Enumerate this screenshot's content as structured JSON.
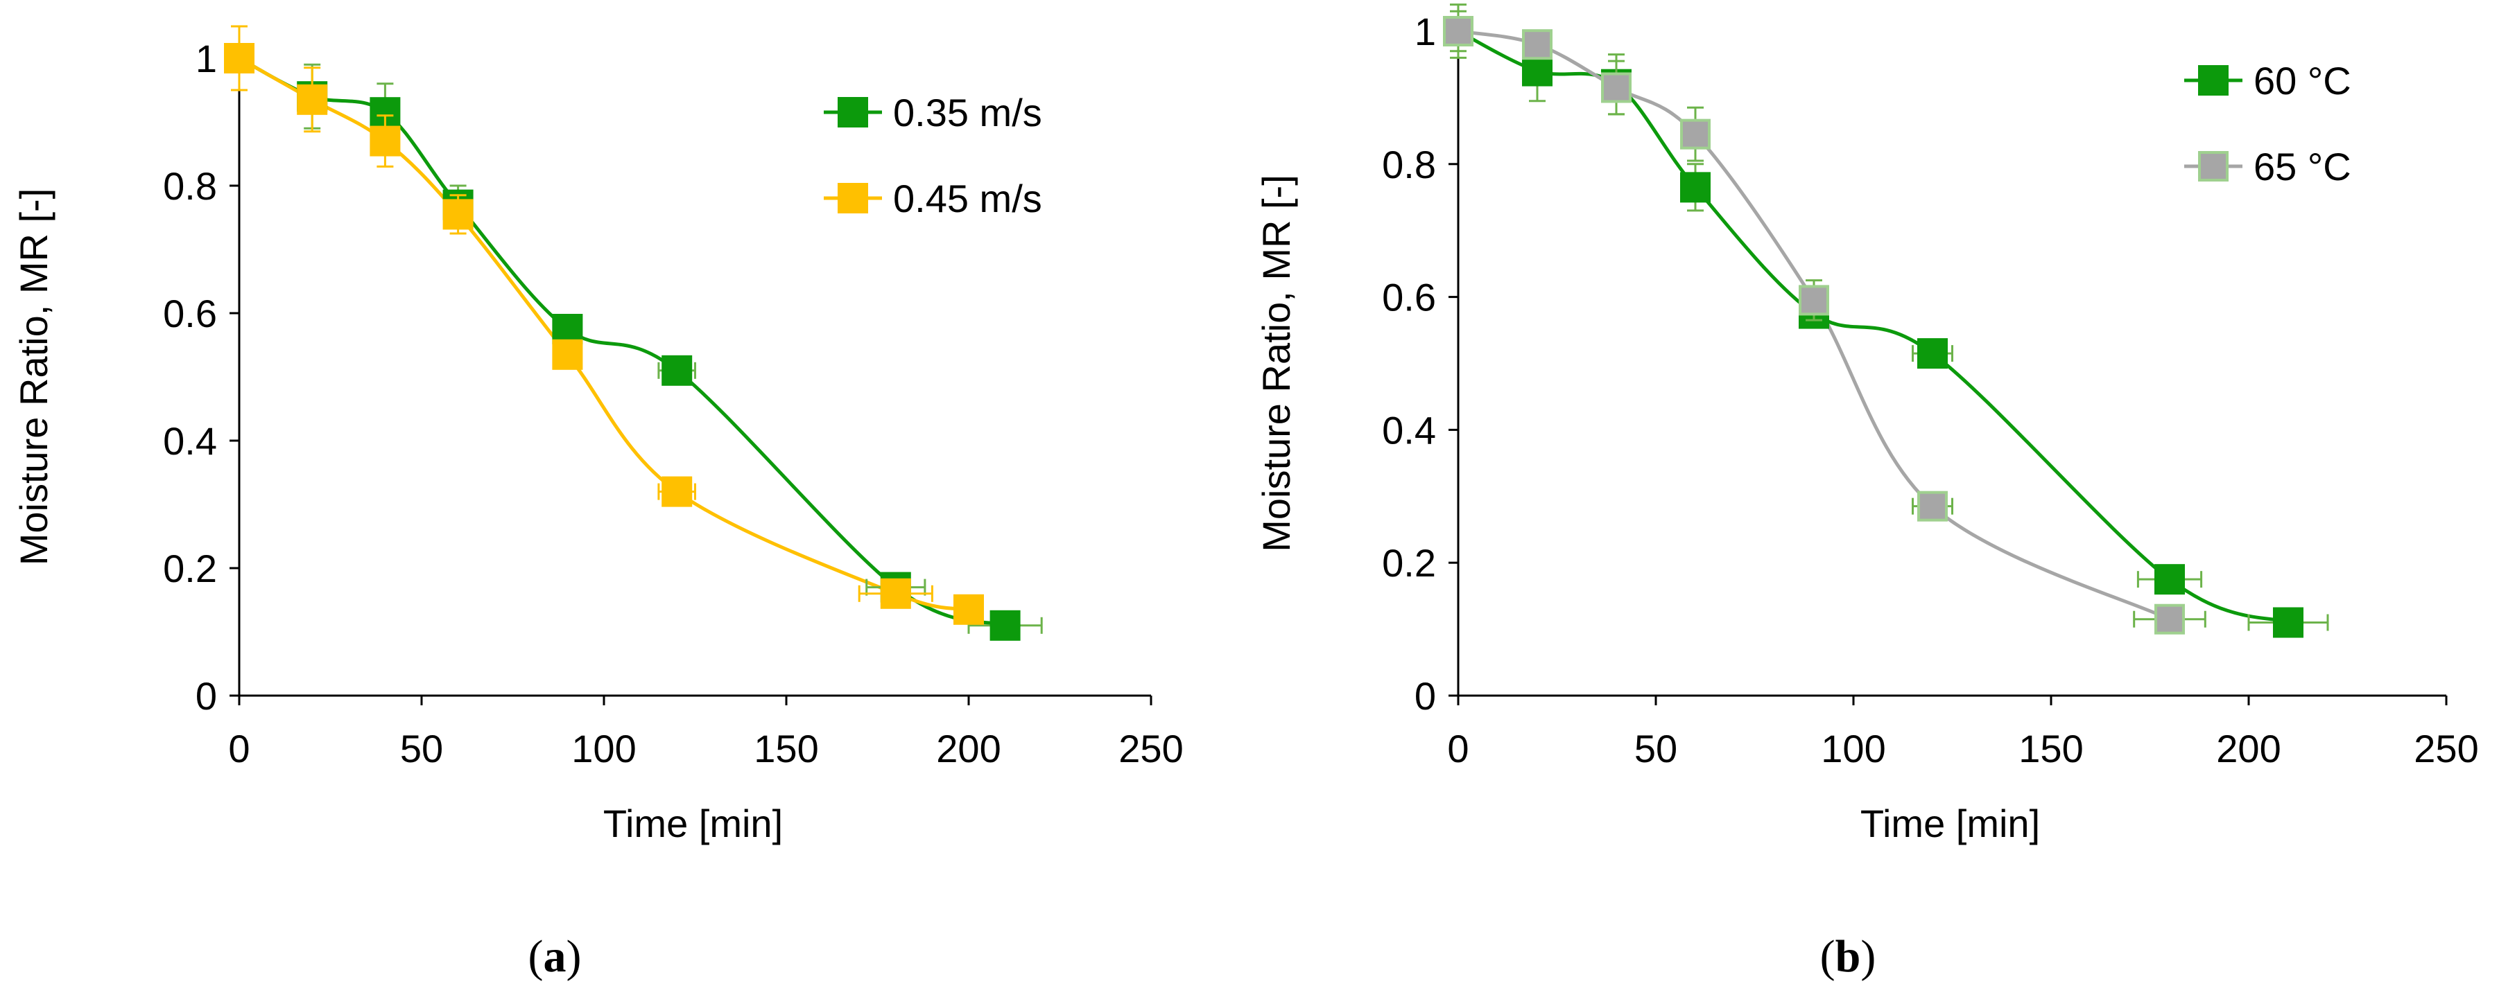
{
  "colors": {
    "green": "#0c9a0c",
    "green_err": "#6cb34a",
    "yellow": "#ffc000",
    "gray": "#a6a6a6",
    "gray_marker_edge": "#9fd08f",
    "axis": "#000000"
  },
  "captions": {
    "a_label": "a",
    "b_label": "b"
  },
  "chart_data": [
    {
      "id": "a",
      "type": "line",
      "xlabel": "Time [min]",
      "ylabel": "Moisture Ratio, MR [-]",
      "xlim": [
        0,
        250
      ],
      "ylim": [
        0,
        1
      ],
      "xticks": [
        0,
        50,
        100,
        150,
        200,
        250
      ],
      "yticks": [
        0,
        0.2,
        0.4,
        0.6,
        0.8,
        1
      ],
      "xtick_labels": [
        "0",
        "50",
        "100",
        "150",
        "200",
        "250"
      ],
      "ytick_labels": [
        "0",
        "0.2",
        "0.4",
        "0.6",
        "0.8",
        "1"
      ],
      "legend_position": "top-right",
      "series": [
        {
          "name": "0.35 m/s",
          "color": "#0c9a0c",
          "err_color": "#6cb34a",
          "marker_edge": "#0c9a0c",
          "x": [
            0,
            20,
            40,
            60,
            90,
            120,
            180,
            210
          ],
          "y": [
            1.0,
            0.94,
            0.915,
            0.77,
            0.575,
            0.51,
            0.17,
            0.11
          ],
          "yerr": [
            0.0,
            0.05,
            0.045,
            0.03,
            0.02,
            0.02,
            0.02,
            0.01
          ],
          "xerr": [
            0,
            0,
            0,
            0,
            0,
            5,
            8,
            10
          ]
        },
        {
          "name": "0.45 m/s",
          "color": "#ffc000",
          "err_color": "#ffc000",
          "marker_edge": "#ffc000",
          "x": [
            0,
            20,
            40,
            60,
            90,
            120,
            180,
            200
          ],
          "y": [
            1.0,
            0.935,
            0.87,
            0.755,
            0.535,
            0.32,
            0.16,
            0.135
          ],
          "yerr": [
            0.05,
            0.05,
            0.04,
            0.03,
            0.02,
            0.02,
            0.02,
            0.01
          ],
          "xerr": [
            0,
            0,
            0,
            0,
            0,
            5,
            10,
            0
          ]
        }
      ]
    },
    {
      "id": "b",
      "type": "line",
      "xlabel": "Time [min]",
      "ylabel": "Moisture Ratio, MR [-]",
      "xlim": [
        0,
        250
      ],
      "ylim": [
        0,
        1
      ],
      "xticks": [
        0,
        50,
        100,
        150,
        200,
        250
      ],
      "yticks": [
        0,
        0.2,
        0.4,
        0.6,
        0.8,
        1
      ],
      "xtick_labels": [
        "0",
        "50",
        "100",
        "150",
        "200",
        "250"
      ],
      "ytick_labels": [
        "0",
        "0.2",
        "0.4",
        "0.6",
        "0.8",
        "1"
      ],
      "legend_position": "top-right",
      "series": [
        {
          "name": "60 °C",
          "color": "#0c9a0c",
          "err_color": "#6cb34a",
          "marker_edge": "#0c9a0c",
          "x": [
            0,
            20,
            40,
            60,
            90,
            120,
            180,
            210
          ],
          "y": [
            1.0,
            0.94,
            0.92,
            0.765,
            0.575,
            0.515,
            0.175,
            0.11
          ],
          "yerr": [
            0.03,
            0.045,
            0.045,
            0.035,
            0.02,
            0.02,
            0.02,
            0.01
          ],
          "xerr": [
            0,
            0,
            0,
            0,
            0,
            5,
            8,
            10
          ]
        },
        {
          "name": "65 °C",
          "color": "#a6a6a6",
          "err_color": "#6cb34a",
          "marker_edge": "#9fd08f",
          "x": [
            0,
            20,
            40,
            60,
            90,
            120,
            180
          ],
          "y": [
            1.0,
            0.98,
            0.915,
            0.845,
            0.595,
            0.285,
            0.115
          ],
          "yerr": [
            0.04,
            0.02,
            0.04,
            0.04,
            0.03,
            0.02,
            0.015
          ],
          "xerr": [
            0,
            0,
            0,
            0,
            0,
            5,
            9
          ]
        }
      ]
    }
  ]
}
